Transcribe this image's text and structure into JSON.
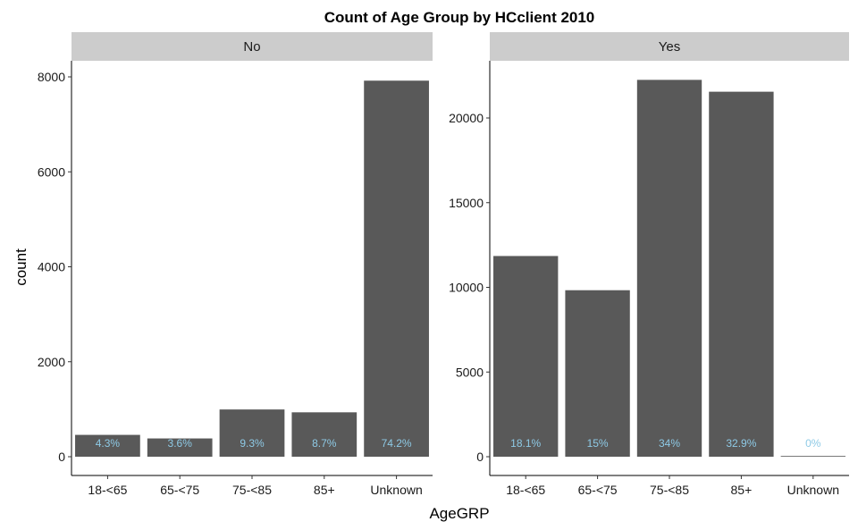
{
  "chart_data": {
    "type": "bar",
    "title": "Count of Age Group by HCclient 2010",
    "xlabel": "AgeGRP",
    "ylabel": "count",
    "categories": [
      "18-<65",
      "65-<75",
      "75-<85",
      "85+",
      "Unknown"
    ],
    "bar_color": "#595959",
    "label_color": "#8ecae6",
    "strip_color": "#cccccc",
    "grid": false,
    "panels": [
      {
        "facet": "No",
        "values": [
          460,
          385,
          995,
          935,
          7920
        ],
        "labels": [
          "4.3%",
          "3.6%",
          "9.3%",
          "8.7%",
          "74.2%"
        ],
        "ylim": [
          0,
          8000
        ],
        "yticks": [
          0,
          2000,
          4000,
          6000,
          8000
        ],
        "ytick_labels": [
          "0",
          "2000",
          "4000",
          "6000",
          "8000"
        ]
      },
      {
        "facet": "Yes",
        "values": [
          11850,
          9830,
          22250,
          21550,
          5
        ],
        "labels": [
          "18.1%",
          "15%",
          "34%",
          "32.9%",
          "0%"
        ],
        "ylim": [
          0,
          20000
        ],
        "yticks": [
          0,
          5000,
          10000,
          15000,
          20000
        ],
        "ytick_labels": [
          "0",
          "5000",
          "10000",
          "15000",
          "20000"
        ]
      }
    ]
  }
}
